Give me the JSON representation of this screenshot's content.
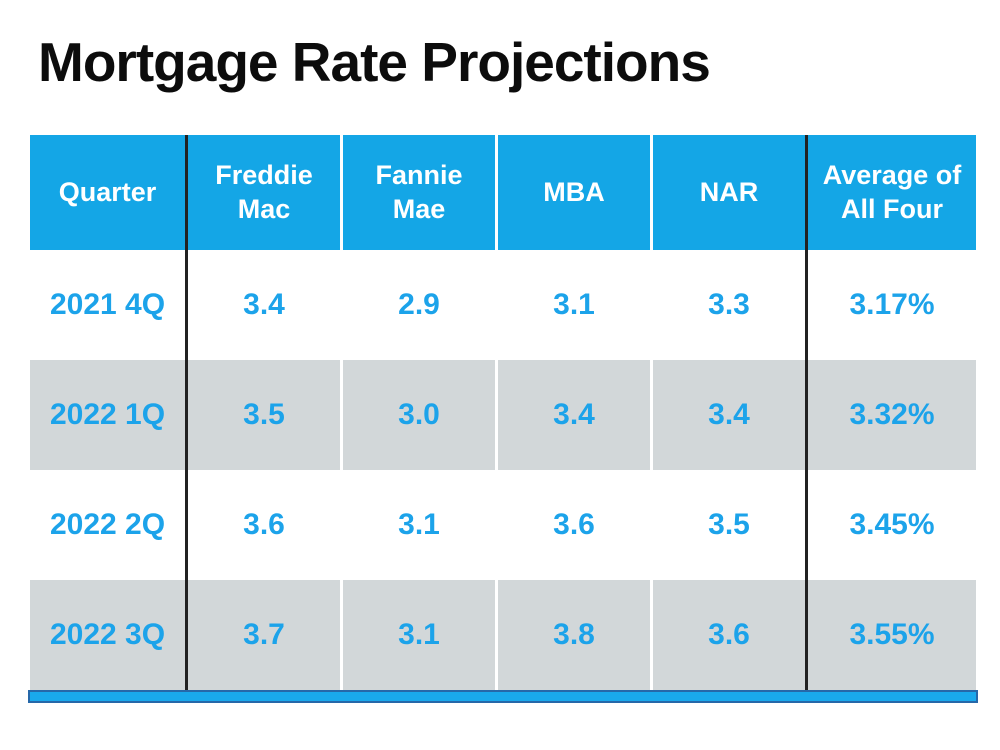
{
  "title": "Mortgage Rate Projections",
  "colors": {
    "header_bg": "#14A6E6",
    "row_alt_bg": "#D2D7D9",
    "data_text": "#1CA3EA",
    "divider": "#222222",
    "bar_fill": "#19A9EC",
    "bar_border": "#2668A9"
  },
  "table": {
    "columns": [
      "Quarter",
      "Freddie Mac",
      "Fannie Mae",
      "MBA",
      "NAR",
      "Average of All Four"
    ],
    "rows": [
      {
        "cells": [
          "2021 4Q",
          "3.4",
          "2.9",
          "3.1",
          "3.3",
          "3.17%"
        ]
      },
      {
        "cells": [
          "2022 1Q",
          "3.5",
          "3.0",
          "3.4",
          "3.4",
          "3.32%"
        ]
      },
      {
        "cells": [
          "2022 2Q",
          "3.6",
          "3.1",
          "3.6",
          "3.5",
          "3.45%"
        ]
      },
      {
        "cells": [
          "2022 3Q",
          "3.7",
          "3.1",
          "3.8",
          "3.6",
          "3.55%"
        ]
      }
    ]
  },
  "chart_data": {
    "type": "table",
    "title": "Mortgage Rate Projections",
    "columns": [
      "Quarter",
      "Freddie Mac",
      "Fannie Mae",
      "MBA",
      "NAR",
      "Average of All Four"
    ],
    "rows": [
      [
        "2021 4Q",
        3.4,
        2.9,
        3.1,
        3.3,
        "3.17%"
      ],
      [
        "2022 1Q",
        3.5,
        3.0,
        3.4,
        3.4,
        "3.32%"
      ],
      [
        "2022 2Q",
        3.6,
        3.1,
        3.6,
        3.5,
        "3.45%"
      ],
      [
        "2022 3Q",
        3.7,
        3.1,
        3.8,
        3.6,
        "3.55%"
      ]
    ]
  }
}
